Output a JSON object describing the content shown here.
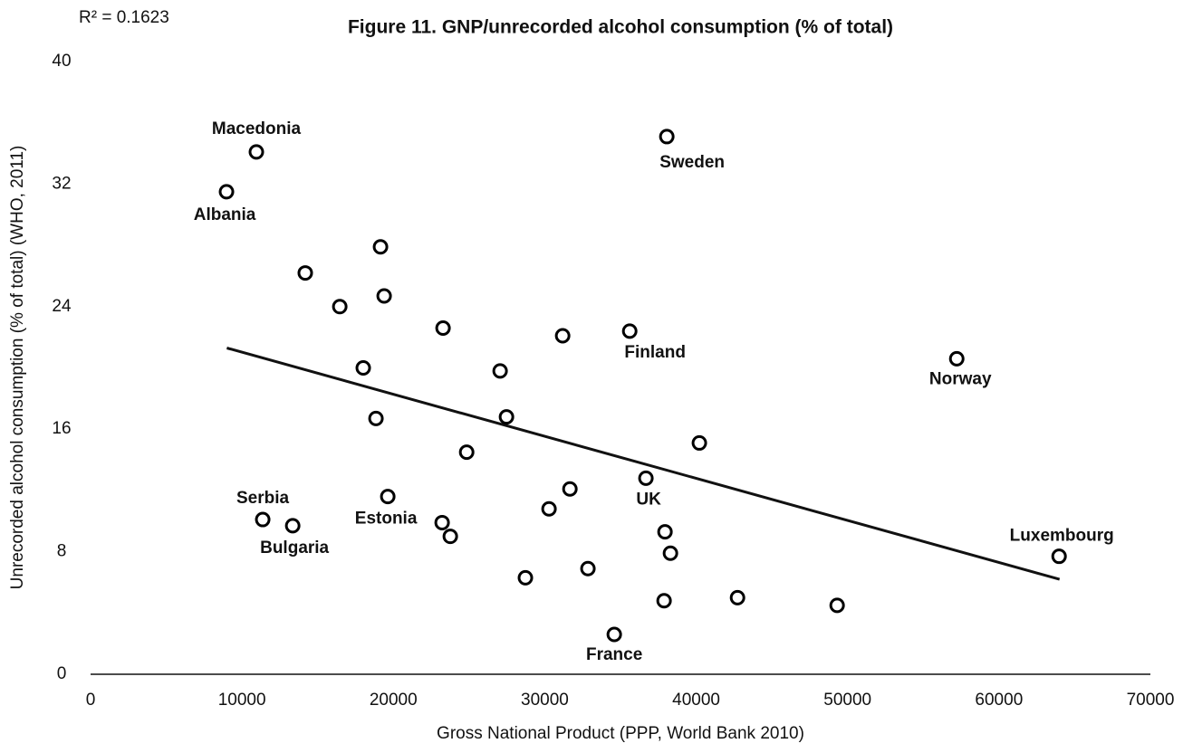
{
  "chart_data": {
    "type": "scatter",
    "title": "Figure 11. GNP/unrecorded alcohol consumption (% of total)",
    "annotation": "R² = 0.1623",
    "x_label": "Gross National Product (PPP, World Bank 2010)",
    "y_label": "Unrecorded alcohol consumption (% of total) (WHO, 2011)",
    "xlim": [
      0,
      70000
    ],
    "xticks": [
      0,
      10000,
      20000,
      30000,
      40000,
      50000,
      60000,
      70000
    ],
    "ylim": [
      0,
      40
    ],
    "yticks": [
      0,
      8,
      16,
      24,
      32,
      40
    ],
    "color": "#000000",
    "series": [
      {
        "x": [
          10950,
          8977,
          38060,
          35610,
          57210,
          36680,
          11370,
          13350,
          19630,
          63970,
          34590,
          19150,
          14180,
          19390,
          16460,
          23280,
          31180,
          27050,
          18010,
          18850,
          27470,
          24840,
          40210,
          31660,
          30280,
          23220,
          23760,
          37940,
          38300,
          28720,
          32850,
          37880,
          42730,
          49310
        ],
        "values": [
          34.1,
          31.5,
          35.1,
          22.4,
          20.6,
          12.8,
          10.1,
          9.7,
          11.6,
          7.7,
          2.6,
          27.9,
          26.2,
          24.7,
          24.0,
          22.6,
          22.1,
          19.8,
          20.0,
          16.7,
          16.8,
          14.5,
          15.1,
          12.1,
          10.8,
          9.9,
          9.0,
          9.3,
          7.9,
          6.3,
          6.9,
          4.8,
          5.0,
          4.5
        ],
        "labels": [
          "Macedonia",
          "Albania",
          "Sweden",
          "Finland",
          "Norway",
          "UK",
          "Serbia",
          "Bulgaria",
          "Estonia",
          "Luxembourg",
          "France",
          null,
          null,
          null,
          null,
          null,
          null,
          null,
          null,
          null,
          null,
          null,
          null,
          null,
          null,
          null,
          null,
          null,
          null,
          null,
          null,
          null,
          null,
          null
        ]
      }
    ],
    "trendline": {
      "x": [
        9000,
        64000
      ],
      "values": [
        21.3,
        6.2
      ]
    }
  }
}
